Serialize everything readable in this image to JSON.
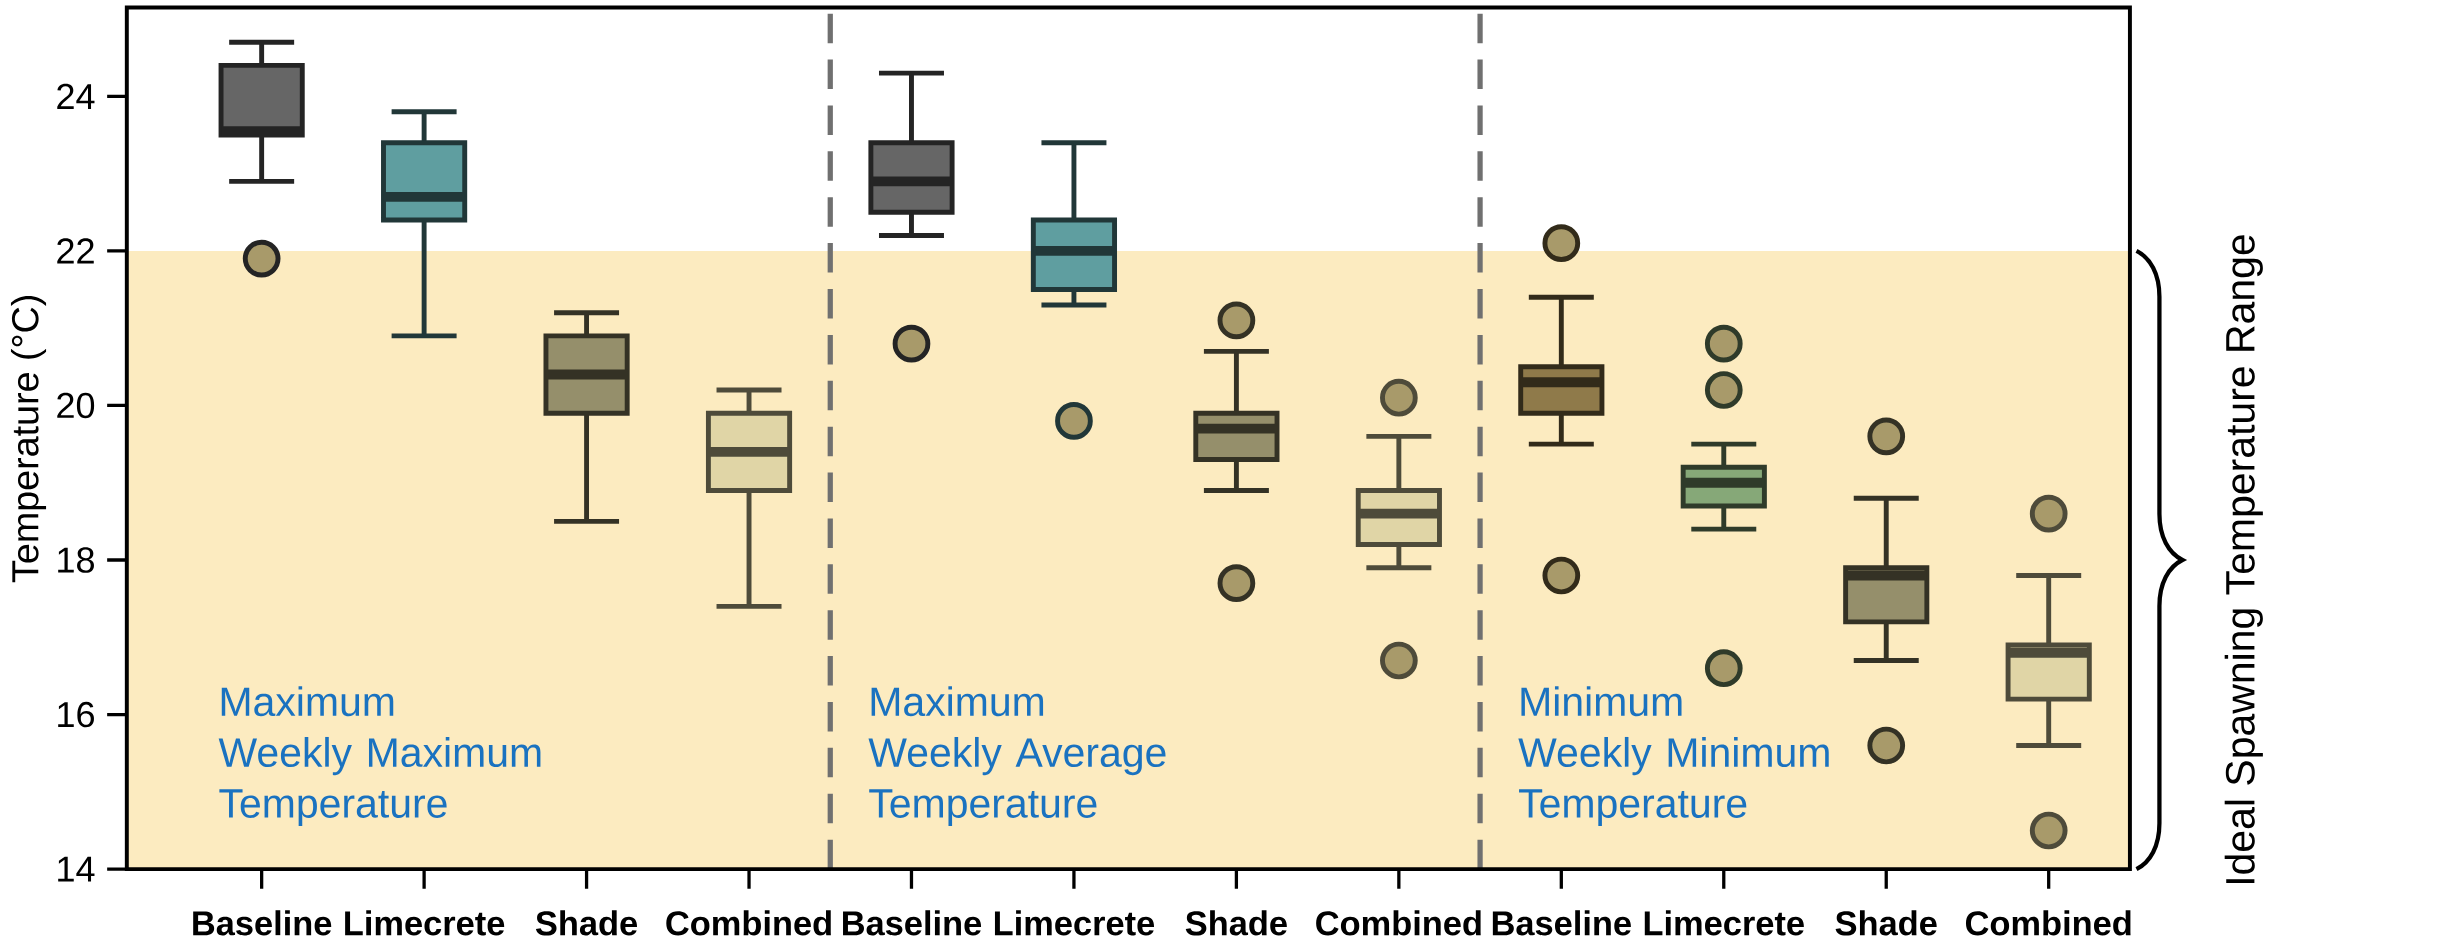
{
  "chart_data": {
    "type": "box",
    "ylabel": "Temperature (°C)",
    "categories": [
      "Baseline",
      "Limecrete",
      "Shade",
      "Combined",
      "Baseline",
      "Limecrete",
      "Shade",
      "Combined",
      "Baseline",
      "Limecrete",
      "Shade",
      "Combined"
    ],
    "boxes": [
      {
        "low": 22.9,
        "q1": 23.5,
        "median": 23.55,
        "q3": 24.4,
        "high": 24.7,
        "outliers": [
          21.9
        ]
      },
      {
        "low": 20.9,
        "q1": 22.4,
        "median": 22.7,
        "q3": 23.4,
        "high": 23.8
      },
      {
        "low": 18.5,
        "q1": 19.9,
        "median": 20.4,
        "q3": 20.9,
        "high": 21.2
      },
      {
        "low": 17.4,
        "q1": 18.9,
        "median": 19.4,
        "q3": 19.9,
        "high": 20.2
      },
      {
        "low": 22.2,
        "q1": 22.5,
        "median": 22.9,
        "q3": 23.4,
        "high": 24.3,
        "outliers": [
          20.8
        ]
      },
      {
        "low": 21.3,
        "q1": 21.5,
        "median": 22.0,
        "q3": 22.4,
        "high": 23.4,
        "outliers": [
          19.8
        ]
      },
      {
        "low": 18.9,
        "q1": 19.3,
        "median": 19.7,
        "q3": 19.9,
        "high": 20.7,
        "outliers": [
          21.1,
          17.7
        ]
      },
      {
        "low": 17.9,
        "q1": 18.2,
        "median": 18.6,
        "q3": 18.9,
        "high": 19.6,
        "outliers": [
          20.1,
          16.7
        ]
      },
      {
        "low": 19.5,
        "q1": 19.9,
        "median": 20.3,
        "q3": 20.5,
        "high": 21.4,
        "outliers": [
          22.1,
          17.8
        ]
      },
      {
        "low": 18.4,
        "q1": 18.7,
        "median": 19.0,
        "q3": 19.2,
        "high": 19.5,
        "outliers": [
          20.8,
          20.2,
          16.6
        ]
      },
      {
        "low": 16.7,
        "q1": 17.2,
        "median": 17.8,
        "q3": 17.9,
        "high": 18.8,
        "outliers": [
          19.6,
          15.6
        ]
      },
      {
        "low": 15.6,
        "q1": 16.2,
        "median": 16.8,
        "q3": 16.9,
        "high": 17.8,
        "outliers": [
          18.6,
          14.5
        ]
      }
    ],
    "colors": [
      "#666666",
      "#5f9ea0",
      "#958f6b",
      "#e0d5a6",
      "#666666",
      "#5f9ea0",
      "#958f6b",
      "#e0d5a6",
      "#8f7a4a",
      "#86a878",
      "#958f6b",
      "#e0d5a6"
    ],
    "ylim": [
      14,
      25.15
    ],
    "yticks": [
      14,
      16,
      18,
      20,
      22,
      24
    ],
    "bands": [
      {
        "axis": "y",
        "from": 14,
        "to": 22,
        "label": "Ideal Spawning Temperature Range",
        "color": "#fcebc0"
      }
    ],
    "annotations": [
      "Maximum Weekly Maximum Temperature",
      "Maximum Weekly Average Temperature",
      "Minimum Weekly Minimum Temperature"
    ]
  }
}
